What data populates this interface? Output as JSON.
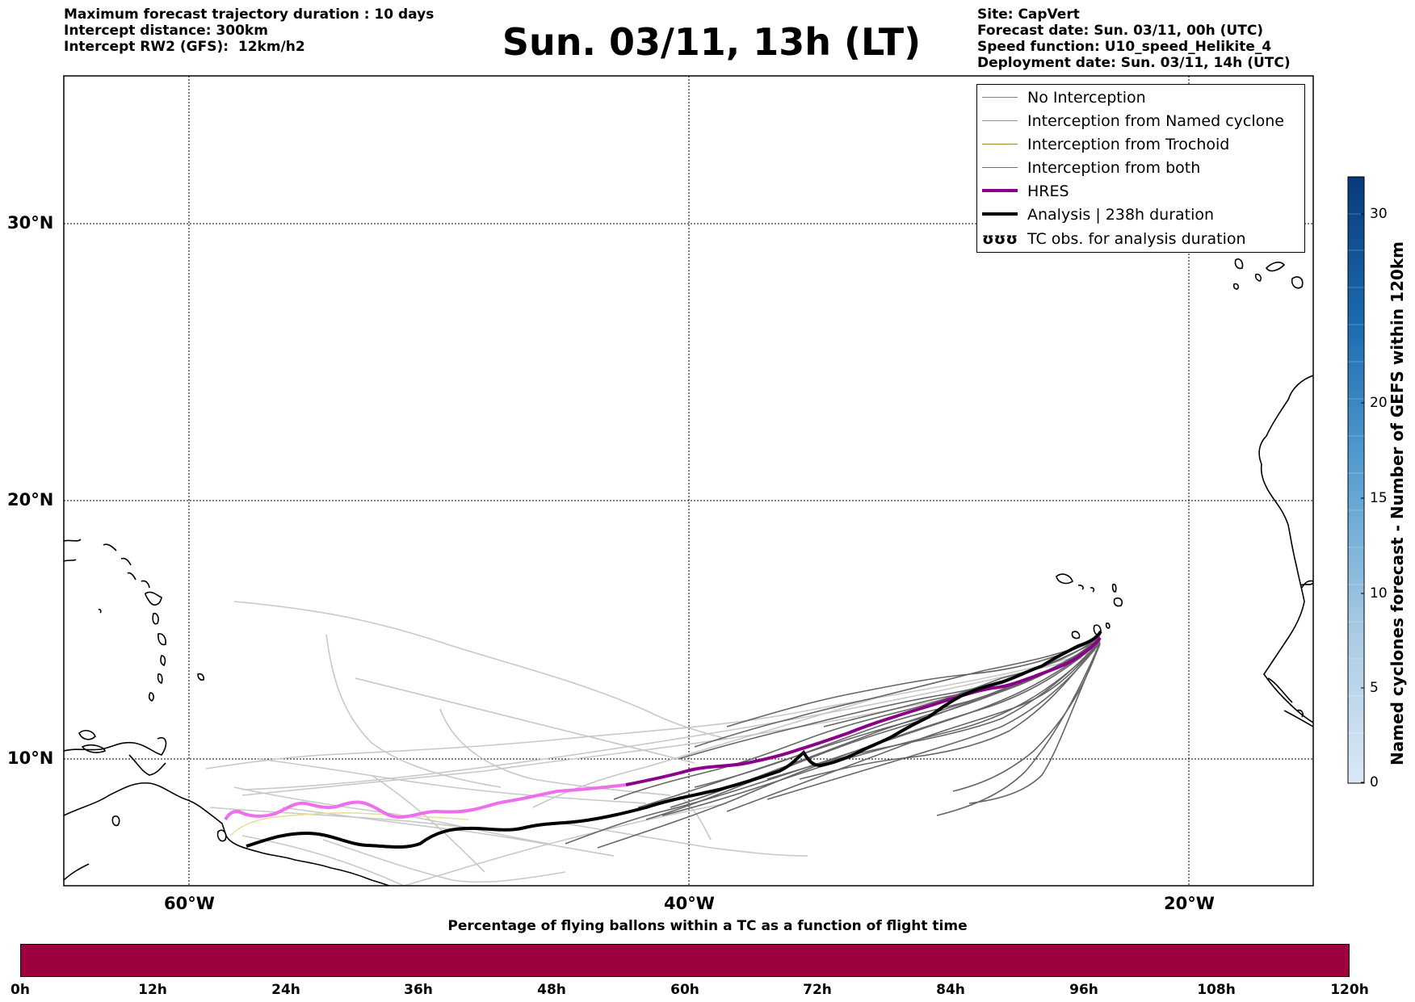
{
  "info_left": [
    "Maximum forecast trajectory duration : 10 days",
    "Intercept distance: 300km",
    "Intercept RW2 (GFS):  12km/h2"
  ],
  "title": "Sun. 03/11, 13h (LT)",
  "info_right": [
    "Site: CapVert",
    "Forecast date: Sun. 03/11, 00h (UTC)",
    "Speed function: U10_speed_Helikite_4",
    "Deployment date: Sun. 03/11, 14h (UTC)"
  ],
  "map": {
    "lon_ticks": [
      "60°W",
      "40°W",
      "20°W"
    ],
    "lat_ticks": [
      "30°N",
      "20°N",
      "10°N"
    ],
    "colors": {
      "hres_dark": "#8b008b",
      "hres_light": "#ee6eee",
      "analysis": "#000000",
      "no_interception_dark": "#666666",
      "no_interception_light": "#c8c8c8",
      "trochoid": "#e8e09a"
    }
  },
  "legend": {
    "items": [
      {
        "label": "No Interception",
        "color": "#808080",
        "kind": "thin"
      },
      {
        "label": "Interception from Named cyclone",
        "color": "#ff7043",
        "kind": "thin"
      },
      {
        "label": "Interception from Trochoid",
        "color": "#9a8a30",
        "kind": "thin"
      },
      {
        "label": "Interception from both",
        "color": "#2ca02c",
        "kind": "thin"
      },
      {
        "label": "HRES",
        "color": "#8b008b",
        "kind": "thick"
      },
      {
        "label": "Analysis | 238h duration",
        "color": "#000000",
        "kind": "thick"
      },
      {
        "label": "TC obs. for analysis duration",
        "color": "#000000",
        "kind": "symbol",
        "symbol": "ʊʊʊ"
      }
    ]
  },
  "colorbar": {
    "title": "Named cyclones forecast - Number of GEFS within 120km",
    "ticks": [
      "30",
      "20",
      "15",
      "10",
      "5",
      "0"
    ]
  },
  "bottom": {
    "title": "Percentage of flying ballons within a TC as a function of flight time",
    "bar_color": "#9e013f",
    "ticks": [
      "0h",
      "12h",
      "24h",
      "36h",
      "48h",
      "60h",
      "72h",
      "84h",
      "96h",
      "108h",
      "120h"
    ]
  }
}
